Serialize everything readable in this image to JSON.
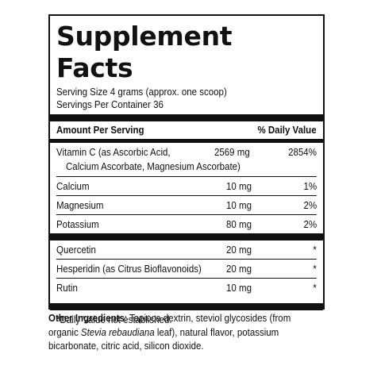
{
  "title": "Supplement Facts",
  "serving_size": "Serving Size 4 grams (approx. one scoop)",
  "servings_per_container": "Servings Per Container 36",
  "header": {
    "amount_per_serving": "Amount Per Serving",
    "daily_value": "% Daily Value"
  },
  "nutrients": [
    {
      "name": "Vitamin C (as Ascorbic Acid,",
      "name_cont": "Calcium Ascorbate, Magnesium Ascorbate)",
      "amount": "2569 mg",
      "dv": "2854%"
    },
    {
      "name": "Calcium",
      "amount": "10 mg",
      "dv": "1%"
    },
    {
      "name": "Magnesium",
      "amount": "10 mg",
      "dv": "2%"
    },
    {
      "name": "Potassium",
      "amount": "80 mg",
      "dv": "2%"
    },
    {
      "name": "Quercetin",
      "amount": "20 mg",
      "dv": "*"
    },
    {
      "name": "Hesperidin (as Citrus Bioflavonoids)",
      "amount": "20 mg",
      "dv": "*"
    },
    {
      "name": "Rutin",
      "amount": "10 mg",
      "dv": "*"
    }
  ],
  "footnote": "*Daily Value not established.",
  "other_ingredients": {
    "label": "Other Ingredients",
    "line1": ": Tapioca dextrin, steviol glycosides (from",
    "line2_pre": "organic ",
    "line2_italic": "Stevia rebaudiana",
    "line2_post": " leaf), natural flavor, potassium",
    "line3": "bicarbonate, citric acid, silicon dioxide."
  }
}
